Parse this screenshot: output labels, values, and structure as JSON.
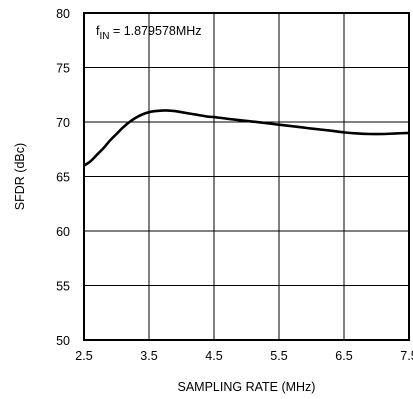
{
  "chart_data": {
    "type": "line",
    "title": "",
    "xlabel": "SAMPLING RATE (MHz)",
    "ylabel": "SFDR (dBc)",
    "xlim": [
      2.5,
      7.5
    ],
    "ylim": [
      50,
      80
    ],
    "xticks": [
      2.5,
      3.5,
      4.5,
      5.5,
      6.5,
      7.5
    ],
    "xtick_labels": [
      "2.5",
      "3.5",
      "4.5",
      "5.5",
      "6.5",
      "7.5"
    ],
    "yticks": [
      50,
      55,
      60,
      65,
      70,
      75,
      80
    ],
    "ytick_labels": [
      "50",
      "55",
      "60",
      "65",
      "70",
      "75",
      "80"
    ],
    "grid": true,
    "annotation": {
      "prefix": "f",
      "subscript": "IN",
      "suffix": " = 1.879578MHz"
    },
    "series": [
      {
        "color": "#000000",
        "x": [
          2.5,
          2.6,
          2.7,
          2.8,
          2.9,
          3.0,
          3.1,
          3.2,
          3.3,
          3.4,
          3.5,
          3.6,
          3.7,
          3.8,
          3.9,
          4.0,
          4.2,
          4.4,
          4.5,
          4.7,
          5.0,
          5.3,
          5.5,
          5.8,
          6.0,
          6.3,
          6.5,
          6.7,
          6.9,
          7.1,
          7.3,
          7.5
        ],
        "y": [
          66.0,
          66.4,
          67.0,
          67.6,
          68.3,
          68.9,
          69.5,
          70.0,
          70.4,
          70.7,
          70.9,
          71.0,
          71.05,
          71.05,
          71.0,
          70.9,
          70.7,
          70.5,
          70.45,
          70.3,
          70.1,
          69.9,
          69.75,
          69.55,
          69.4,
          69.2,
          69.05,
          68.95,
          68.9,
          68.9,
          68.95,
          69.0
        ]
      }
    ]
  }
}
